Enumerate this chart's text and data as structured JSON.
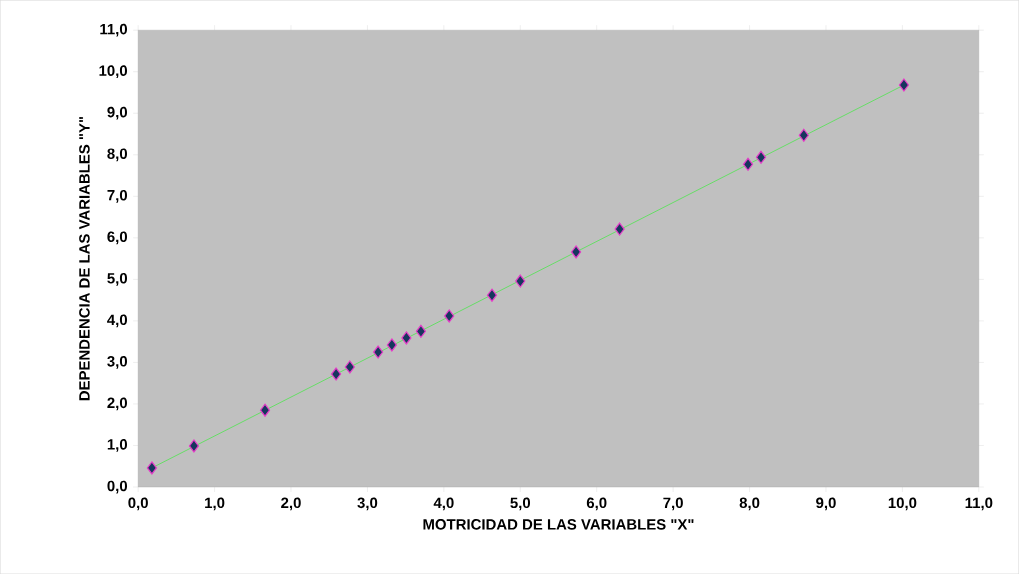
{
  "chart_data": {
    "type": "scatter",
    "xlabel": "MOTRICIDAD  DE LAS VARIABLES \"X\"",
    "ylabel": "DEPENDENCIA  DE LAS VARIABLES \"Y\"",
    "xlim": [
      0,
      11
    ],
    "ylim": [
      0,
      11
    ],
    "xticks": [
      {
        "value": 0,
        "label": "0,0"
      },
      {
        "value": 1,
        "label": "1,0"
      },
      {
        "value": 2,
        "label": "2,0"
      },
      {
        "value": 3,
        "label": "3,0"
      },
      {
        "value": 4,
        "label": "4,0"
      },
      {
        "value": 5,
        "label": "5,0"
      },
      {
        "value": 6,
        "label": "6,0"
      },
      {
        "value": 7,
        "label": "7,0"
      },
      {
        "value": 8,
        "label": "8,0"
      },
      {
        "value": 9,
        "label": "9,0"
      },
      {
        "value": 10,
        "label": "10,0"
      },
      {
        "value": 11,
        "label": "11,0"
      }
    ],
    "yticks": [
      {
        "value": 0,
        "label": "0,0"
      },
      {
        "value": 1,
        "label": "1,0"
      },
      {
        "value": 2,
        "label": "2,0"
      },
      {
        "value": 3,
        "label": "3,0"
      },
      {
        "value": 4,
        "label": "4,0"
      },
      {
        "value": 5,
        "label": "5,0"
      },
      {
        "value": 6,
        "label": "6,0"
      },
      {
        "value": 7,
        "label": "7,0"
      },
      {
        "value": 8,
        "label": "8,0"
      },
      {
        "value": 9,
        "label": "9,0"
      },
      {
        "value": 10,
        "label": "10,0"
      },
      {
        "value": 11,
        "label": "11,0"
      }
    ],
    "series": [
      {
        "marker": "diamond",
        "color": "#17375e",
        "x": [
          0.18,
          0.73,
          1.66,
          2.59,
          2.77,
          3.14,
          3.32,
          3.51,
          3.7,
          4.07,
          4.63,
          5.0,
          5.73,
          6.3,
          7.98,
          8.15,
          8.71,
          10.02
        ],
        "values": [
          0.46,
          0.99,
          1.85,
          2.72,
          2.89,
          3.25,
          3.42,
          3.59,
          3.75,
          4.12,
          4.62,
          4.96,
          5.66,
          6.21,
          7.77,
          7.94,
          8.47,
          9.68
        ]
      },
      {
        "type": "line",
        "marker": "none",
        "color": "#66dd66",
        "x": [
          0.18,
          10.02
        ],
        "values": [
          0.46,
          9.68
        ]
      }
    ]
  }
}
